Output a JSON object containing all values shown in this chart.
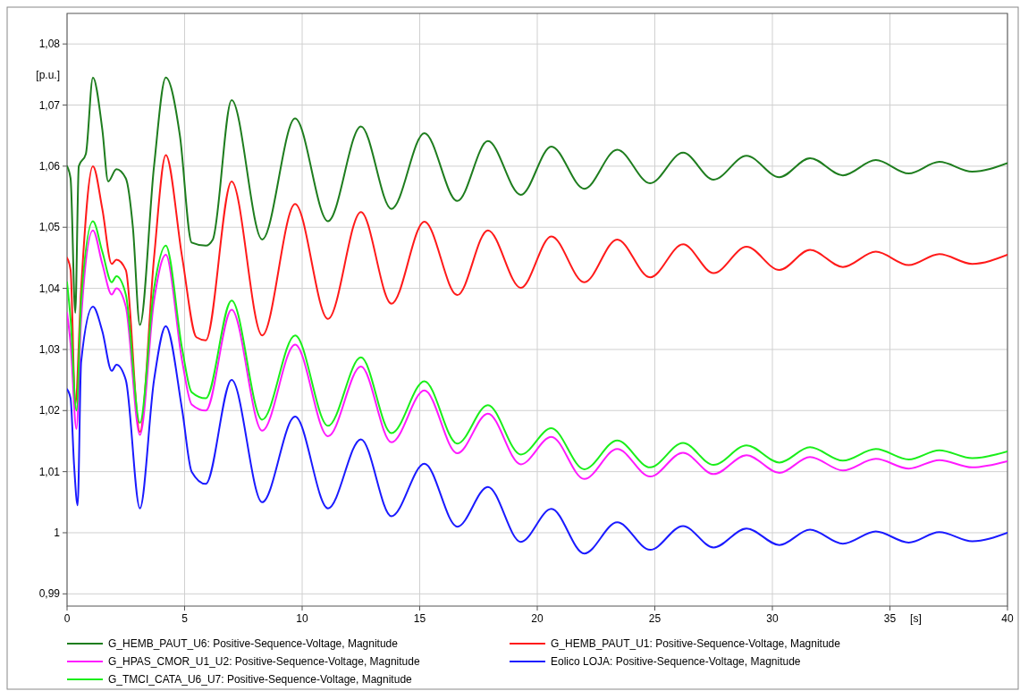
{
  "chart_data": {
    "type": "line",
    "xlabel": "[s]",
    "ylabel": "[p.u.]",
    "xlim": [
      0,
      40
    ],
    "ylim": [
      0.988,
      1.085
    ],
    "xticks": [
      0,
      5,
      10,
      15,
      20,
      25,
      30,
      35,
      40
    ],
    "yticks": [
      {
        "value": 0.99,
        "label": "0,99"
      },
      1,
      {
        "value": 1.01,
        "label": "1,01"
      },
      {
        "value": 1.02,
        "label": "1,02"
      },
      {
        "value": 1.03,
        "label": "1,03"
      },
      {
        "value": 1.04,
        "label": "1,04"
      },
      {
        "value": 1.05,
        "label": "1,05"
      },
      {
        "value": 1.06,
        "label": "1,06"
      },
      {
        "value": 1.07,
        "label": "1,07"
      },
      {
        "value": 1.08,
        "label": "1,08"
      }
    ],
    "grid": true,
    "legend": "bottom",
    "line_style": "solid",
    "marker": "none",
    "series": [
      {
        "name": "G_HEMB_PAUT_U6: Positive-Sequence-Voltage, Magnitude",
        "color": "#1e7d1e",
        "x": [
          0,
          0.15,
          0.35,
          0.5,
          0.8,
          1.1,
          1.5,
          1.75,
          2.1,
          2.5,
          2.8,
          3.1,
          3.7,
          4.2,
          4.8,
          5.3,
          5.9,
          6.2,
          7.0,
          8.3,
          9.7,
          11.1,
          12.5,
          13.8,
          15.2,
          16.6,
          17.9,
          19.3,
          20.6,
          22.0,
          23.4,
          24.8,
          26.2,
          27.5,
          28.9,
          30.3,
          31.6,
          33.0,
          34.4,
          35.8,
          37.1,
          38.5,
          40
        ],
        "values": [
          1.06,
          1.058,
          1.036,
          1.06,
          1.062,
          1.0745,
          1.066,
          1.0575,
          1.0595,
          1.058,
          1.05,
          1.034,
          1.06,
          1.0745,
          1.065,
          1.0475,
          1.047,
          1.048,
          1.0708,
          1.048,
          1.0678,
          1.051,
          1.0665,
          1.053,
          1.0654,
          1.0543,
          1.0641,
          1.0553,
          1.0632,
          1.0563,
          1.0627,
          1.0572,
          1.0622,
          1.0578,
          1.0617,
          1.0582,
          1.0613,
          1.0585,
          1.061,
          1.0588,
          1.0607,
          1.0591,
          1.0605
        ]
      },
      {
        "name": "G_HEMB_PAUT_U1: Positive-Sequence-Voltage, Magnitude",
        "color": "#ff1a1a",
        "x": [
          0,
          0.15,
          0.35,
          0.6,
          1.1,
          1.5,
          1.9,
          2.1,
          2.5,
          3.1,
          3.7,
          4.2,
          4.9,
          5.5,
          5.9,
          7.0,
          8.3,
          9.7,
          11.1,
          12.5,
          13.8,
          15.2,
          16.6,
          17.9,
          19.3,
          20.6,
          22.0,
          23.4,
          24.8,
          26.2,
          27.5,
          28.9,
          30.3,
          31.6,
          33.0,
          34.4,
          35.8,
          37.1,
          38.5,
          40
        ],
        "values": [
          1.045,
          1.043,
          1.021,
          1.04,
          1.06,
          1.053,
          1.044,
          1.0447,
          1.043,
          1.0165,
          1.045,
          1.0618,
          1.045,
          1.032,
          1.0315,
          1.0575,
          1.0323,
          1.0538,
          1.035,
          1.0525,
          1.0375,
          1.0509,
          1.0389,
          1.0495,
          1.0401,
          1.0485,
          1.041,
          1.048,
          1.0418,
          1.0472,
          1.0425,
          1.0468,
          1.043,
          1.0463,
          1.0435,
          1.046,
          1.0438,
          1.0456,
          1.044,
          1.0455
        ]
      },
      {
        "name": "G_HPAS_CMOR_U1_U2: Positive-Sequence-Voltage, Magnitude",
        "color": "#ff1aff",
        "x": [
          0,
          0.15,
          0.4,
          0.6,
          1.1,
          1.5,
          1.9,
          2.1,
          2.5,
          3.1,
          3.7,
          4.2,
          4.9,
          5.3,
          5.9,
          7.0,
          8.3,
          9.7,
          11.1,
          12.5,
          13.8,
          15.2,
          16.6,
          17.9,
          19.3,
          20.6,
          22.0,
          23.4,
          24.8,
          26.2,
          27.5,
          28.9,
          30.3,
          31.6,
          33.0,
          34.4,
          35.8,
          37.1,
          38.5,
          40
        ],
        "values": [
          1.036,
          1.031,
          1.017,
          1.035,
          1.0495,
          1.044,
          1.039,
          1.04,
          1.037,
          1.016,
          1.038,
          1.0455,
          1.028,
          1.021,
          1.02,
          1.0365,
          1.0167,
          1.0308,
          1.0158,
          1.0272,
          1.0148,
          1.0233,
          1.013,
          1.0195,
          1.0112,
          1.0157,
          1.0088,
          1.0137,
          1.0092,
          1.0131,
          1.0096,
          1.0127,
          1.0098,
          1.0124,
          1.0102,
          1.0121,
          1.0105,
          1.0119,
          1.0107,
          1.0117
        ]
      },
      {
        "name": "Eolico LOJA: Positive-Sequence-Voltage, Magnitude",
        "color": "#1a1aff",
        "x": [
          0,
          0.15,
          0.3,
          0.45,
          0.6,
          1.1,
          1.5,
          1.9,
          2.1,
          2.5,
          3.1,
          3.7,
          4.2,
          4.9,
          5.3,
          5.9,
          7.0,
          8.3,
          9.7,
          11.1,
          12.5,
          13.8,
          15.2,
          16.6,
          17.9,
          19.3,
          20.6,
          22.0,
          23.4,
          24.8,
          26.2,
          27.5,
          28.9,
          30.3,
          31.6,
          33.0,
          34.4,
          35.8,
          37.1,
          38.5,
          40
        ],
        "values": [
          1.0235,
          1.022,
          1.011,
          1.0045,
          1.028,
          1.037,
          1.033,
          1.0265,
          1.0275,
          1.025,
          1.004,
          1.025,
          1.0338,
          1.02,
          1.01,
          1.008,
          1.025,
          1.005,
          1.019,
          1.004,
          1.0153,
          1.0027,
          1.0113,
          1.001,
          1.0075,
          0.9985,
          1.0039,
          0.9966,
          1.0017,
          0.9972,
          1.0011,
          0.9976,
          1.0007,
          0.998,
          1.0005,
          0.9982,
          1.0002,
          0.9984,
          1.0001,
          0.9986,
          1.0
        ]
      },
      {
        "name": "G_TMCI_CATA_U6_U7: Positive-Sequence-Voltage, Magnitude",
        "color": "#1aee1a",
        "x": [
          0,
          0.15,
          0.4,
          0.6,
          1.1,
          1.5,
          1.9,
          2.1,
          2.5,
          3.1,
          3.7,
          4.2,
          4.9,
          5.3,
          5.9,
          7.0,
          8.3,
          9.7,
          11.1,
          12.5,
          13.8,
          15.2,
          16.6,
          17.9,
          19.3,
          20.6,
          22.0,
          23.4,
          24.8,
          26.2,
          27.5,
          28.9,
          30.3,
          31.6,
          33.0,
          34.4,
          35.8,
          37.1,
          38.5,
          40
        ],
        "values": [
          1.041,
          1.035,
          1.02,
          1.038,
          1.051,
          1.046,
          1.041,
          1.042,
          1.039,
          1.018,
          1.04,
          1.047,
          1.03,
          1.023,
          1.022,
          1.038,
          1.0185,
          1.0323,
          1.0175,
          1.0287,
          1.0163,
          1.0248,
          1.0146,
          1.0209,
          1.0128,
          1.0171,
          1.0104,
          1.0151,
          1.0107,
          1.0147,
          1.0111,
          1.0143,
          1.0115,
          1.014,
          1.0118,
          1.0137,
          1.012,
          1.0135,
          1.0122,
          1.0133
        ]
      }
    ]
  }
}
